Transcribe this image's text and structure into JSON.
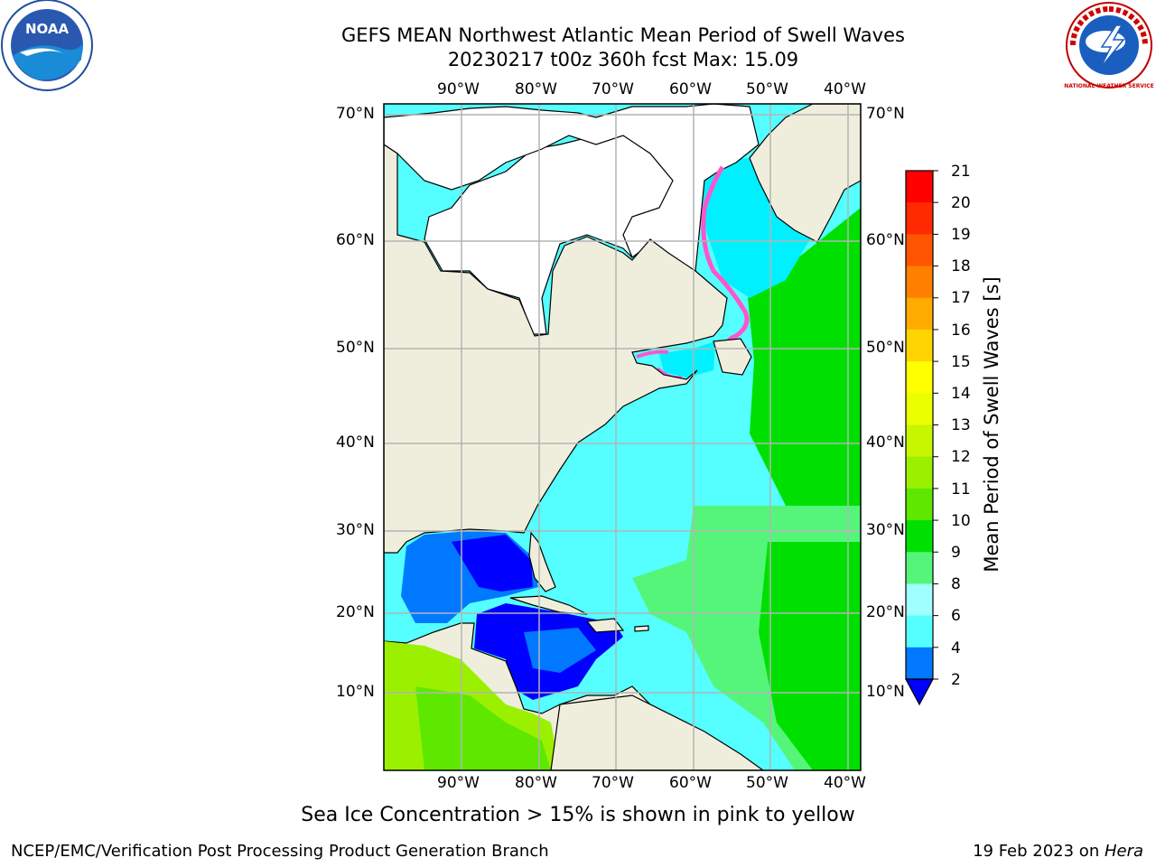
{
  "title_line1": "GEFS MEAN Northwest Atlantic Mean Period of Swell Waves",
  "title_line2": "20230217 t00z 360h fcst   Max: 15.09",
  "caption": "Sea Ice Concentration > 15% is shown in pink to yellow",
  "footer_left": "NCEP/EMC/Verification Post Processing Product Generation Branch",
  "footer_date": "19 Feb 2023 on ",
  "footer_host": "Hera",
  "logos": {
    "noaa": "NOAA",
    "nws": "NATIONAL WEATHER SERVICE"
  },
  "map": {
    "lon_ticks": [
      "90°W",
      "80°W",
      "70°W",
      "60°W",
      "50°W",
      "40°W"
    ],
    "lat_ticks": [
      "70°N",
      "60°N",
      "50°N",
      "40°N",
      "30°N",
      "20°N",
      "10°N"
    ],
    "land_color": "#efeedc",
    "ice_land_color": "#ffffff"
  },
  "colorbar": {
    "title": "Mean Period of Swell Waves [s]",
    "tick_labels": [
      "21",
      "20",
      "19",
      "18",
      "17",
      "16",
      "15",
      "14",
      "13",
      "12",
      "11",
      "10",
      "9",
      "8",
      "6",
      "4",
      "2"
    ],
    "colors": [
      "#ff0000",
      "#ff2a00",
      "#ff5500",
      "#ff8000",
      "#ffab00",
      "#ffd400",
      "#ffff00",
      "#eaff00",
      "#c8f500",
      "#9bf000",
      "#5ee800",
      "#00e000",
      "#55f57a",
      "#a0ffff",
      "#55ffff",
      "#00f0ff",
      "#0078ff"
    ],
    "extend_color": "#0000ff"
  }
}
